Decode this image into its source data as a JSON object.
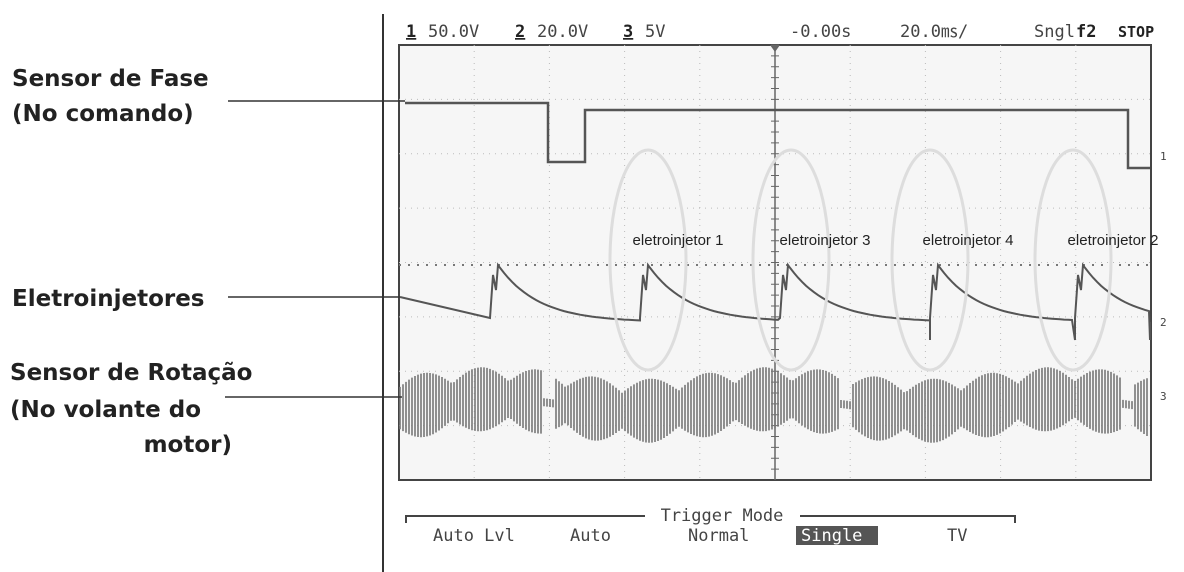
{
  "status_bar": {
    "ch1_num": "1",
    "ch1_scale": "50.0V",
    "ch2_num": "2",
    "ch2_scale": "20.0V",
    "ch3_num": "3",
    "ch3_scale": "5V",
    "time_offset": "-0.00s",
    "time_scale": "20.0㎳/",
    "mode": "Sngl",
    "trigger": "f2",
    "state": "STOP"
  },
  "signal_labels": {
    "phase": [
      "Sensor de Fase",
      "(No comando)"
    ],
    "injectors": [
      "Eletroinjetores"
    ],
    "rotation": [
      "Sensor de Rotação",
      "(No volante do",
      "motor)"
    ]
  },
  "injector_labels": [
    "eletroinjetor 1",
    "eletroinjetor 3",
    "eletroinjetor 4",
    "eletroinjetor 2"
  ],
  "channel_markers": [
    "1",
    "2",
    "3"
  ],
  "trigger_menu": {
    "title": "Trigger Mode",
    "options": [
      "Auto Lvl",
      "Auto",
      "Normal",
      "Single",
      "TV"
    ]
  }
}
